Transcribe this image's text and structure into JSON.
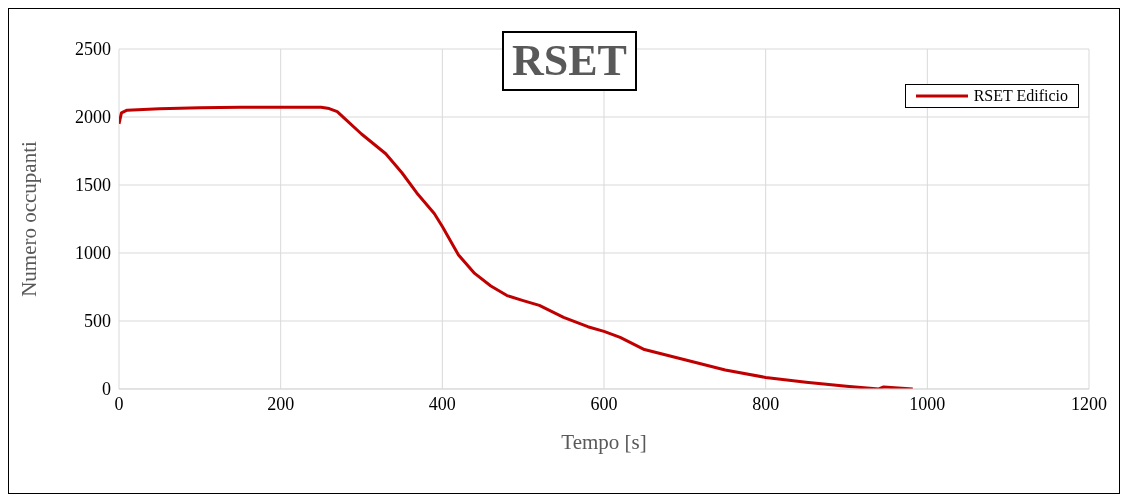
{
  "chart_data": {
    "type": "line",
    "title": "RSET",
    "xlabel": "Tempo [s]",
    "ylabel": "Numero occupanti",
    "xlim": [
      0,
      1200
    ],
    "xticks": [
      0,
      200,
      400,
      600,
      800,
      1000,
      1200
    ],
    "ylim": [
      0,
      2500
    ],
    "yticks": [
      0,
      500,
      1000,
      1500,
      2000,
      2500
    ],
    "grid": true,
    "legend": "top right",
    "marker": "none",
    "line_style": "solid",
    "series": [
      {
        "name": "RSET Edificio",
        "color": "#c00000",
        "x": [
          0,
          3,
          10,
          50,
          100,
          150,
          250,
          260,
          270,
          280,
          300,
          330,
          350,
          370,
          390,
          400,
          410,
          420,
          440,
          460,
          480,
          500,
          520,
          550,
          580,
          600,
          620,
          650,
          700,
          750,
          800,
          850,
          900,
          940,
          946,
          982
        ],
        "values": [
          1950,
          2030,
          2050,
          2060,
          2068,
          2072,
          2072,
          2062,
          2040,
          1985,
          1875,
          1730,
          1590,
          1430,
          1290,
          1195,
          1090,
          986,
          850,
          757,
          687,
          650,
          615,
          527,
          458,
          424,
          380,
          290,
          215,
          140,
          85,
          50,
          20,
          0,
          15,
          0
        ]
      }
    ]
  }
}
